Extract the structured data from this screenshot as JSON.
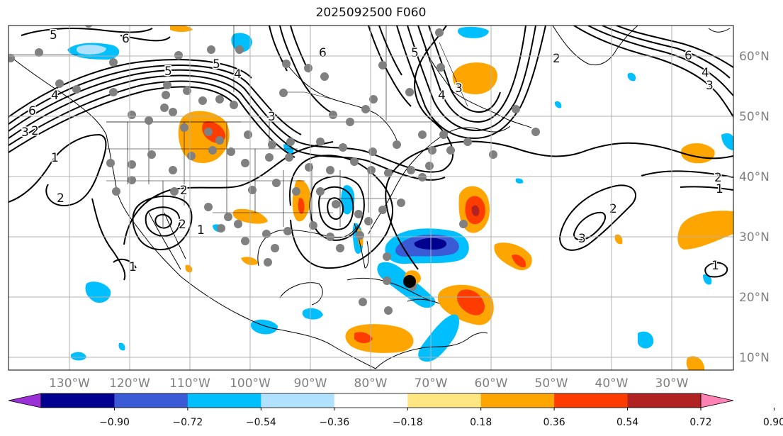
{
  "title": "2025092500 F060",
  "lon_ticks": [
    "130°W",
    "120°W",
    "110°W",
    "100°W",
    "90°W",
    "80°W",
    "70°W",
    "60°W",
    "50°W",
    "40°W",
    "30°W"
  ],
  "lat_ticks": [
    "10°N",
    "20°N",
    "30°N",
    "40°N",
    "50°N",
    "60°N"
  ],
  "colorbar": {
    "levels": [
      "−0.90",
      "−0.72",
      "−0.54",
      "−0.36",
      "−0.18",
      "0.18",
      "0.36",
      "0.54",
      "0.72",
      "0.90"
    ],
    "colors": [
      "#9b30d9",
      "#000090",
      "#3b5bd6",
      "#00bfff",
      "#b0e2ff",
      "#ffffff",
      "#ffe680",
      "#ffa500",
      "#ff3c00",
      "#b22222",
      "#ff82b4"
    ]
  },
  "contour_labels": [
    "5",
    "6",
    "5",
    "4",
    "6",
    "3",
    "2",
    "1",
    "2",
    "2",
    "1",
    "2",
    "1",
    "3",
    "4",
    "5",
    "6",
    "5",
    "4",
    "3",
    "2",
    "6",
    "4",
    "3",
    "2",
    "1",
    "2",
    "1",
    "3"
  ],
  "colors": {
    "contour": "#000000",
    "station_marker": "#808080",
    "center_marker": "#000000",
    "coastline": "#000000",
    "grid": "#b0b0b0"
  }
}
